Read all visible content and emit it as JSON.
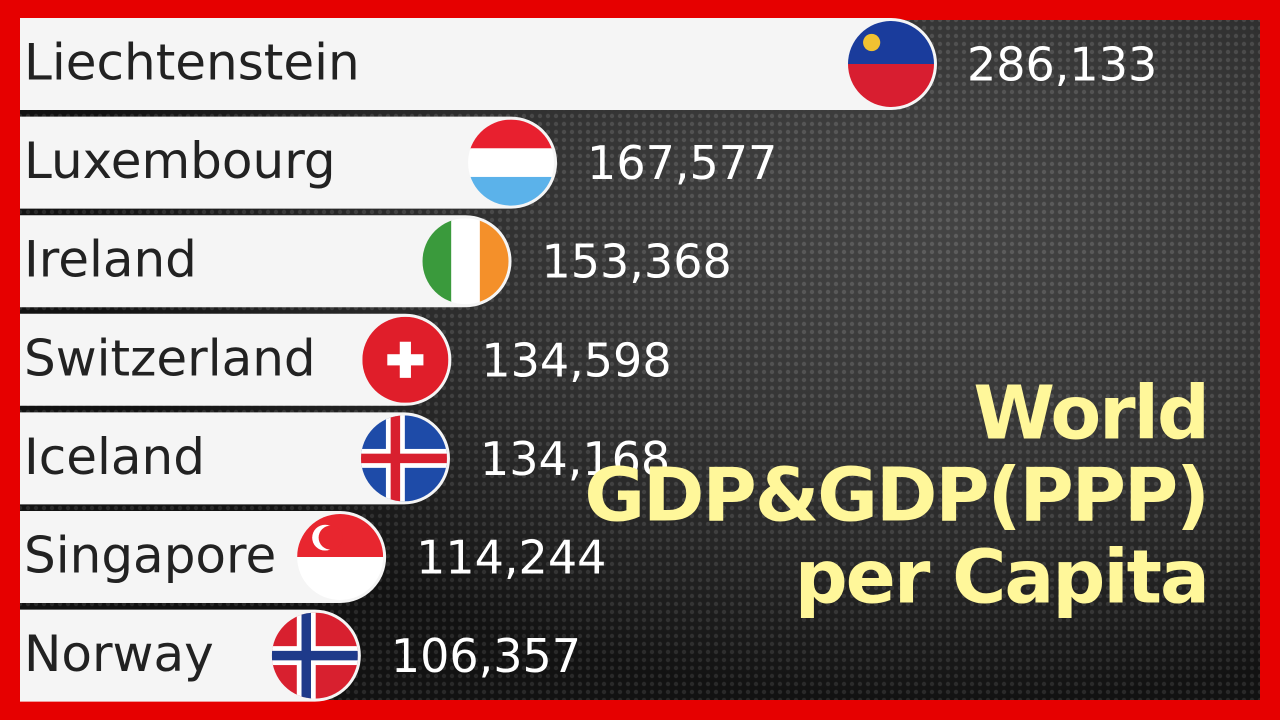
{
  "chart_data": {
    "type": "bar",
    "orientation": "horizontal",
    "title": [
      "World",
      "GDP&GDP(PPP)",
      "per Capita"
    ],
    "categories": [
      "Liechtenstein",
      "Luxembourg",
      "Ireland",
      "Switzerland",
      "Iceland",
      "Singapore",
      "Norway"
    ],
    "values": [
      286133,
      167577,
      153368,
      134598,
      134168,
      114244,
      106357
    ],
    "value_labels": [
      "286,133",
      "167,577",
      "153,368",
      "134,598",
      "134,168",
      "114,244",
      "106,357"
    ],
    "color": "#f5f5f5"
  }
}
